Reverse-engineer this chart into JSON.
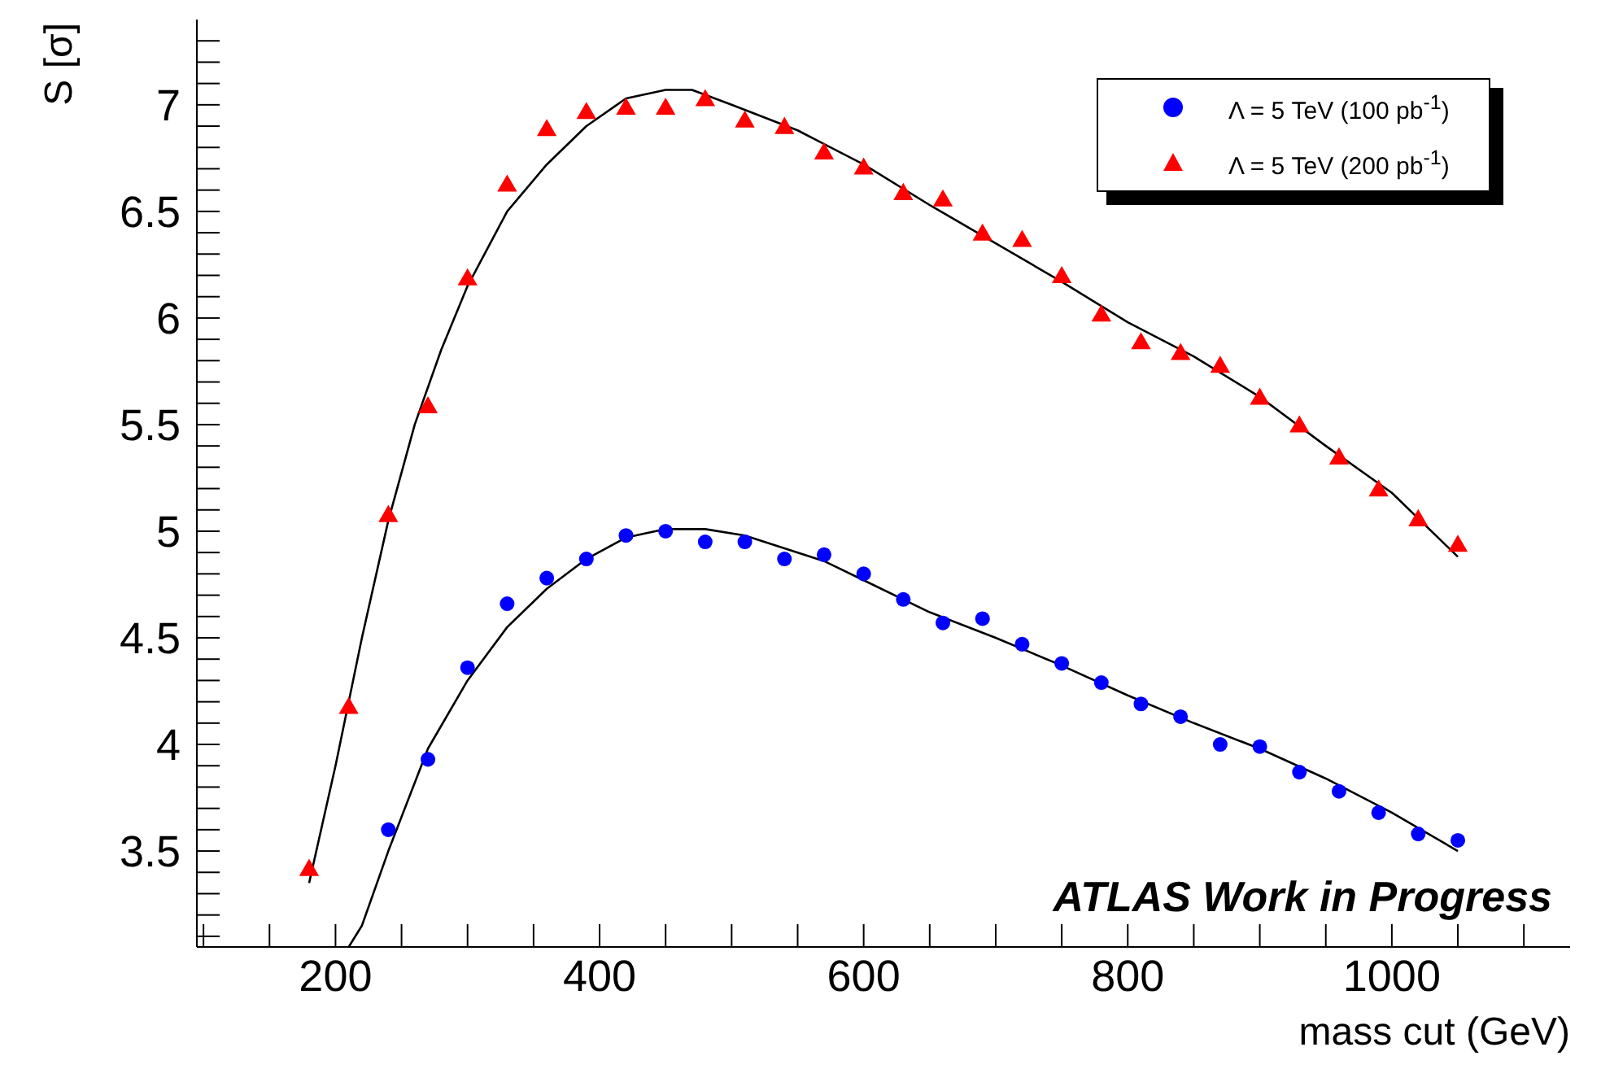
{
  "chart_data": {
    "type": "scatter",
    "ylabel": "S [σ]",
    "xlabel": "mass cut (GeV)",
    "xlim": [
      95,
      1135
    ],
    "ylim": [
      3.05,
      7.4
    ],
    "xticks": [
      {
        "value": 100,
        "label": null
      },
      {
        "value": 150,
        "label": null
      },
      200,
      {
        "value": 250,
        "label": null
      },
      {
        "value": 300,
        "label": null
      },
      {
        "value": 350,
        "label": null
      },
      400,
      {
        "value": 450,
        "label": null
      },
      {
        "value": 500,
        "label": null
      },
      {
        "value": 550,
        "label": null
      },
      600,
      {
        "value": 650,
        "label": null
      },
      {
        "value": 700,
        "label": null
      },
      {
        "value": 750,
        "label": null
      },
      800,
      {
        "value": 850,
        "label": null
      },
      {
        "value": 900,
        "label": null
      },
      {
        "value": 950,
        "label": null
      },
      1000,
      {
        "value": 1050,
        "label": null
      },
      {
        "value": 1100,
        "label": null
      }
    ],
    "yticks": [
      {
        "value": 3.1,
        "label": null
      },
      {
        "value": 3.2,
        "label": null
      },
      {
        "value": 3.3,
        "label": null
      },
      {
        "value": 3.4,
        "label": null
      },
      3.5,
      {
        "value": 3.6,
        "label": null
      },
      {
        "value": 3.7,
        "label": null
      },
      {
        "value": 3.8,
        "label": null
      },
      {
        "value": 3.9,
        "label": null
      },
      4,
      {
        "value": 4.1,
        "label": null
      },
      {
        "value": 4.2,
        "label": null
      },
      {
        "value": 4.3,
        "label": null
      },
      {
        "value": 4.4,
        "label": null
      },
      4.5,
      {
        "value": 4.6,
        "label": null
      },
      {
        "value": 4.7,
        "label": null
      },
      {
        "value": 4.8,
        "label": null
      },
      {
        "value": 4.9,
        "label": null
      },
      5,
      {
        "value": 5.1,
        "label": null
      },
      {
        "value": 5.2,
        "label": null
      },
      {
        "value": 5.3,
        "label": null
      },
      {
        "value": 5.4,
        "label": null
      },
      5.5,
      {
        "value": 5.6,
        "label": null
      },
      {
        "value": 5.7,
        "label": null
      },
      {
        "value": 5.8,
        "label": null
      },
      {
        "value": 5.9,
        "label": null
      },
      6,
      {
        "value": 6.1,
        "label": null
      },
      {
        "value": 6.2,
        "label": null
      },
      {
        "value": 6.3,
        "label": null
      },
      {
        "value": 6.4,
        "label": null
      },
      6.5,
      {
        "value": 6.6,
        "label": null
      },
      {
        "value": 6.7,
        "label": null
      },
      {
        "value": 6.8,
        "label": null
      },
      {
        "value": 6.9,
        "label": null
      },
      7,
      {
        "value": 7.1,
        "label": null
      },
      {
        "value": 7.2,
        "label": null
      },
      {
        "value": 7.3,
        "label": null
      }
    ],
    "legend": "top right",
    "annotations": [
      "ATLAS Work in Progress"
    ],
    "series": [
      {
        "name": "Λ = 5 TeV (100 pb$^{-1}$)",
        "type": "scatter",
        "marker": "circle",
        "color": "#0000ff",
        "x": [
          240,
          270,
          300,
          330,
          360,
          390,
          420,
          450,
          480,
          510,
          540,
          570,
          600,
          630,
          660,
          690,
          720,
          750,
          780,
          810,
          840,
          870,
          900,
          930,
          960,
          990,
          1020,
          1050
        ],
        "values": [
          3.6,
          3.93,
          4.36,
          4.66,
          4.78,
          4.87,
          4.98,
          5.0,
          4.95,
          4.95,
          4.87,
          4.89,
          4.8,
          4.68,
          4.57,
          4.59,
          4.47,
          4.38,
          4.29,
          4.19,
          4.13,
          4.0,
          3.99,
          3.87,
          3.78,
          3.68,
          3.58,
          3.55
        ]
      },
      {
        "name": "Λ = 5 TeV (200 pb$^{-1}$)",
        "type": "scatter",
        "marker": "triangle",
        "color": "#ff0000",
        "x": [
          180,
          210,
          240,
          270,
          300,
          330,
          360,
          390,
          420,
          450,
          480,
          510,
          540,
          570,
          600,
          630,
          660,
          690,
          720,
          750,
          780,
          810,
          840,
          870,
          900,
          930,
          960,
          990,
          1020,
          1050
        ],
        "values": [
          3.41,
          4.17,
          5.07,
          5.58,
          6.18,
          6.62,
          6.88,
          6.96,
          6.98,
          6.98,
          7.02,
          6.92,
          6.89,
          6.77,
          6.7,
          6.58,
          6.55,
          6.39,
          6.36,
          6.19,
          6.01,
          5.88,
          5.83,
          5.77,
          5.62,
          5.49,
          5.34,
          5.19,
          5.05,
          4.93
        ]
      },
      {
        "type": "line",
        "marker": "none",
        "color": "#000000",
        "x": [
          210,
          220,
          240,
          270,
          300,
          330,
          360,
          390,
          420,
          450,
          480,
          510,
          540,
          570,
          600,
          650,
          700,
          750,
          800,
          850,
          900,
          950,
          1000,
          1050
        ],
        "values": [
          3.05,
          3.15,
          3.5,
          3.98,
          4.3,
          4.55,
          4.73,
          4.87,
          4.97,
          5.01,
          5.01,
          4.98,
          4.92,
          4.86,
          4.77,
          4.62,
          4.5,
          4.37,
          4.23,
          4.1,
          3.98,
          3.84,
          3.68,
          3.5
        ]
      },
      {
        "type": "line",
        "marker": "none",
        "color": "#000000",
        "x": [
          180,
          200,
          220,
          240,
          260,
          280,
          300,
          330,
          360,
          390,
          420,
          450,
          470,
          500,
          550,
          600,
          650,
          700,
          750,
          800,
          850,
          900,
          950,
          1000,
          1050
        ],
        "values": [
          3.35,
          3.9,
          4.5,
          5.05,
          5.5,
          5.85,
          6.15,
          6.5,
          6.72,
          6.9,
          7.03,
          7.07,
          7.07,
          7.0,
          6.88,
          6.72,
          6.53,
          6.35,
          6.17,
          5.98,
          5.82,
          5.63,
          5.4,
          5.18,
          4.88
        ]
      }
    ]
  }
}
